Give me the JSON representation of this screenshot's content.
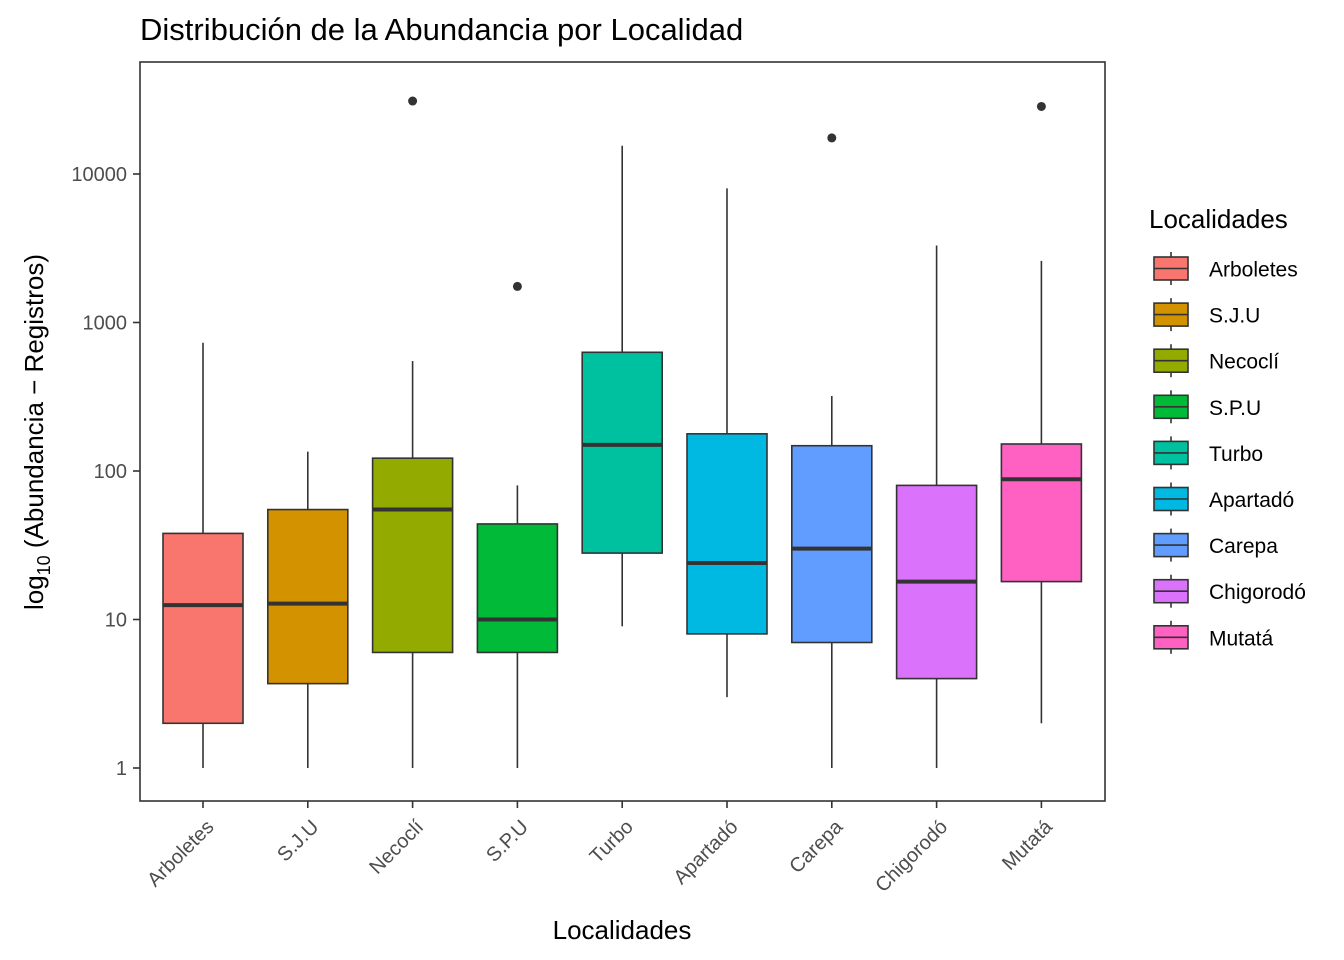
{
  "chart_data": {
    "type": "box",
    "title": "Distribución de la Abundancia por Localidad",
    "xlabel": "Localidades",
    "ylabel": {
      "prefix": "log",
      "subscript": "10",
      "rest": " (Abundancia − Registros)"
    },
    "y_scale": "log10",
    "ylim": [
      0.6,
      50000
    ],
    "y_ticks": [
      1,
      10,
      100,
      1000,
      10000
    ],
    "y_tick_labels": [
      "1",
      "10",
      "100",
      "1000",
      "10000"
    ],
    "legend": {
      "title": "Localidades",
      "position": "right"
    },
    "grid": false,
    "categories": [
      "Arboletes",
      "S.J.U",
      "Necoclí",
      "S.P.U",
      "Turbo",
      "Apartadó",
      "Carepa",
      "Chigorodó",
      "Mutatá"
    ],
    "series": [
      {
        "name": "Arboletes",
        "color": "#F8766D",
        "whisker_low": 1,
        "q1": 2,
        "median": 12.5,
        "q3": 38,
        "whisker_high": 730,
        "outliers": []
      },
      {
        "name": "S.J.U",
        "color": "#D39200",
        "whisker_low": 1,
        "q1": 3.7,
        "median": 12.8,
        "q3": 55,
        "whisker_high": 135,
        "outliers": []
      },
      {
        "name": "Necoclí",
        "color": "#93AA00",
        "whisker_low": 1,
        "q1": 6,
        "median": 55,
        "q3": 122,
        "whisker_high": 550,
        "outliers": [
          31000
        ]
      },
      {
        "name": "S.P.U",
        "color": "#00BA38",
        "whisker_low": 1,
        "q1": 6,
        "median": 10,
        "q3": 44,
        "whisker_high": 80,
        "outliers": [
          1750
        ]
      },
      {
        "name": "Turbo",
        "color": "#00C19F",
        "whisker_low": 9,
        "q1": 28,
        "median": 150,
        "q3": 630,
        "whisker_high": 15500,
        "outliers": []
      },
      {
        "name": "Apartadó",
        "color": "#00B9E3",
        "whisker_low": 3,
        "q1": 8,
        "median": 24,
        "q3": 178,
        "whisker_high": 8000,
        "outliers": []
      },
      {
        "name": "Carepa",
        "color": "#619CFF",
        "whisker_low": 1,
        "q1": 7,
        "median": 30,
        "q3": 148,
        "whisker_high": 320,
        "outliers": [
          17500
        ]
      },
      {
        "name": "Chigorodó",
        "color": "#DB72FB",
        "whisker_low": 1,
        "q1": 4,
        "median": 18,
        "q3": 80,
        "whisker_high": 3300,
        "outliers": []
      },
      {
        "name": "Mutatá",
        "color": "#FF61C3",
        "whisker_low": 2,
        "q1": 18,
        "median": 88,
        "q3": 152,
        "whisker_high": 2600,
        "outliers": [
          28500
        ]
      }
    ]
  }
}
